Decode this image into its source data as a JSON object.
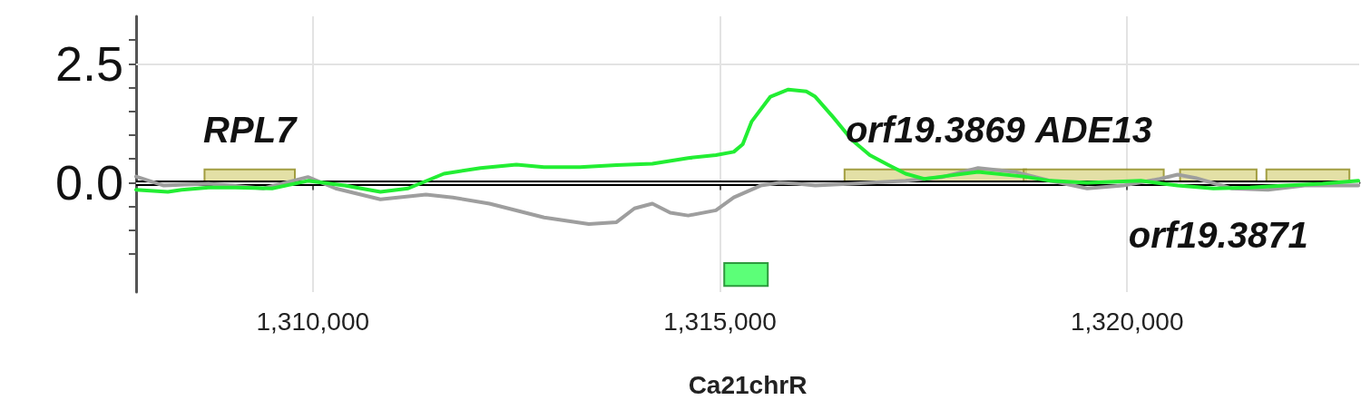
{
  "chart_data": {
    "type": "line",
    "xlabel": "Ca21chrR",
    "xlim": [
      1307830,
      1322850
    ],
    "xticks": [
      {
        "value": 1310000,
        "label": "1,310,000"
      },
      {
        "value": 1315000,
        "label": "1,315,000"
      },
      {
        "value": 1320000,
        "label": "1,320,000"
      }
    ],
    "ylim": [
      -2.3,
      3.5
    ],
    "yticks": [
      {
        "value": -1.5,
        "label": null
      },
      {
        "value": -1,
        "label": null
      },
      {
        "value": -0.5,
        "label": null
      },
      {
        "value": 0,
        "label": "0.0"
      },
      {
        "value": 0.5,
        "label": null
      },
      {
        "value": 1,
        "label": null
      },
      {
        "value": 1.5,
        "label": null
      },
      {
        "value": 2,
        "label": null
      },
      {
        "value": 2.5,
        "label": "2.5"
      },
      {
        "value": 3,
        "label": null
      }
    ],
    "grid": true,
    "marker": "none",
    "line_style": "solid",
    "series": [
      {
        "color": "#9e9e9e",
        "x": [
          1307830,
          1308170,
          1308720,
          1309390,
          1309940,
          1310280,
          1310830,
          1311390,
          1311720,
          1312170,
          1312840,
          1313390,
          1313730,
          1313950,
          1314170,
          1314390,
          1314610,
          1314950,
          1315170,
          1315500,
          1315730,
          1315950,
          1316170,
          1316620,
          1317280,
          1317730,
          1318170,
          1318620,
          1319060,
          1319510,
          1319950,
          1320400,
          1320620,
          1320840,
          1321290,
          1321730,
          1322180,
          1322840
        ],
        "values": [
          0.13,
          -0.06,
          -0.02,
          -0.12,
          0.12,
          -0.12,
          -0.35,
          -0.25,
          -0.31,
          -0.44,
          -0.73,
          -0.87,
          -0.83,
          -0.54,
          -0.44,
          -0.63,
          -0.69,
          -0.58,
          -0.31,
          -0.06,
          0,
          -0.02,
          -0.06,
          -0.02,
          0.04,
          0.12,
          0.31,
          0.23,
          0.04,
          -0.12,
          -0.06,
          0.08,
          0.17,
          0.1,
          -0.12,
          -0.15,
          -0.06,
          -0.06
        ]
      },
      {
        "color": "#22ee33",
        "x": [
          1307830,
          1308220,
          1308390,
          1308720,
          1309050,
          1309500,
          1309940,
          1310390,
          1310830,
          1311170,
          1311610,
          1312060,
          1312500,
          1312840,
          1313280,
          1313730,
          1314170,
          1314610,
          1314950,
          1315170,
          1315280,
          1315390,
          1315620,
          1315840,
          1316060,
          1316170,
          1316390,
          1316620,
          1316840,
          1317060,
          1317280,
          1317510,
          1317730,
          1318170,
          1318730,
          1319060,
          1319510,
          1320170,
          1320620,
          1321060,
          1321510,
          1321950,
          1322400,
          1322840
        ],
        "values": [
          -0.15,
          -0.19,
          -0.15,
          -0.1,
          -0.1,
          -0.12,
          0.04,
          -0.06,
          -0.19,
          -0.12,
          0.19,
          0.31,
          0.38,
          0.33,
          0.33,
          0.37,
          0.4,
          0.52,
          0.58,
          0.65,
          0.81,
          1.29,
          1.81,
          1.96,
          1.92,
          1.81,
          1.38,
          0.9,
          0.58,
          0.38,
          0.19,
          0.08,
          0.13,
          0.23,
          0.13,
          0.04,
          0,
          0.04,
          -0.06,
          -0.12,
          -0.1,
          -0.06,
          -0.02,
          0.04
        ]
      },
      {
        "type": "bar",
        "color": "#5cff78",
        "x": [
          1315320
        ],
        "base": [
          -2.17
        ],
        "values": [
          0.48
        ]
      }
    ],
    "ref_lines": [
      {
        "axis": "y",
        "value": 0,
        "color": "#000000"
      }
    ],
    "bands": [
      {
        "axis": "x",
        "from": 1308670,
        "to": 1309780,
        "color": "#dcd890",
        "label": "RPL7"
      },
      {
        "axis": "x",
        "from": 1316530,
        "to": 1318760,
        "color": "#dcd890",
        "label": "orf19.3869"
      },
      {
        "axis": "x",
        "from": 1318730,
        "to": 1320450,
        "color": "#dcd890",
        "label": "ADE13"
      },
      {
        "axis": "x",
        "from": 1320650,
        "to": 1321590,
        "color": "#dcd890",
        "label": "orf19.3871"
      },
      {
        "axis": "x",
        "from": 1321710,
        "to": 1322730,
        "color": "#dcd890"
      }
    ]
  }
}
